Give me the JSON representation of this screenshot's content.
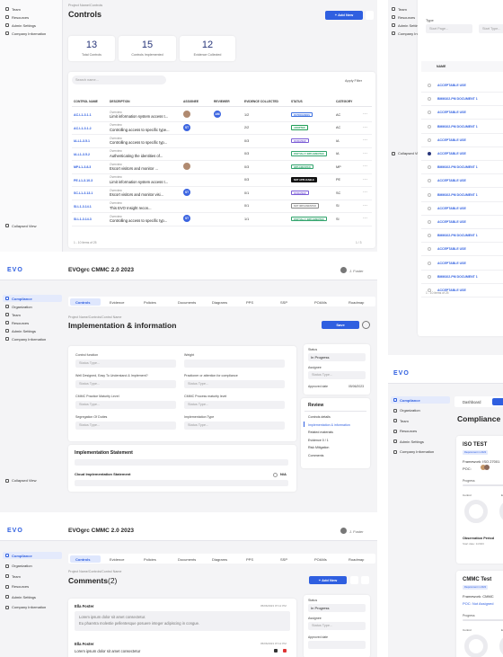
{
  "controls_page": {
    "sidebar": [
      "Team",
      "Resources",
      "Admin Settings",
      "Company Information"
    ],
    "collapsed": "Collapsed View",
    "breadcrumb": "Project Name/Controls",
    "title": "Controls",
    "add_button": "+ Add New",
    "stats": [
      {
        "value": "13",
        "label": "Total Controls"
      },
      {
        "value": "15",
        "label": "Controls Implemented"
      },
      {
        "value": "12",
        "label": "Evidence Collected"
      }
    ],
    "search": "Search name...",
    "filter": "Apply Filter",
    "headers": [
      "CONTROL NAME",
      "DESCRIPTION",
      "ASSIGNEE",
      "REVIEWER",
      "EVIDENCE COLLECTED",
      "STATUS",
      "CATEGORY"
    ],
    "rows": [
      {
        "name": "AC.L1-3.1.1",
        "overview": "Overview",
        "description": "Limit information system access t...",
        "assignee_photo": true,
        "assignee": null,
        "reviewer": "AM",
        "evidence": "1/2",
        "status": "IN PROGRESS",
        "status_color": "#3b6fe0",
        "category": "AC"
      },
      {
        "name": "AC.L1-3.1.2",
        "overview": "Overview",
        "description": "Controlling access to specific type...",
        "assignee_photo": false,
        "assignee": "ST",
        "reviewer": null,
        "evidence": "2/2",
        "status": "ADOPTED",
        "status_color": "#1f9d55",
        "category": "AC"
      },
      {
        "name": "IA.L1-3.5.1",
        "overview": "Overview",
        "description": "Controlling access to specific typ...",
        "assignee_photo": false,
        "assignee": null,
        "reviewer": null,
        "evidence": "0/3",
        "status": "IN REVIEW",
        "status_color": "#7b5cd6",
        "category": "IA"
      },
      {
        "name": "IA.L1-3.5.2",
        "overview": "Overview",
        "description": "Authenticating the identities of...",
        "assignee_photo": false,
        "assignee": null,
        "reviewer": null,
        "evidence": "0/3",
        "status": "PARTIALLY IMPLEMENTED",
        "status_color": "#2fa36b",
        "category": "IA"
      },
      {
        "name": "MP.L1-3.8.3",
        "overview": "Overview",
        "description": "Escort visitors and monitor ...",
        "assignee_photo": true,
        "assignee": null,
        "reviewer": null,
        "evidence": "0/3",
        "status": "IMPLEMENTED",
        "status_color": "#2fa36b",
        "category": "MP"
      },
      {
        "name": "PE.L1-3.10.3",
        "overview": "Overview",
        "description": "Limit information system access t...",
        "assignee_photo": false,
        "assignee": null,
        "reviewer": null,
        "evidence": "0/3",
        "status": "NOT APPLICABLE",
        "status_color": "#111111",
        "category": "PE"
      },
      {
        "name": "SC.L1-3.13.1",
        "overview": "Overview",
        "description": "Escort visitors and monitor visi...",
        "assignee_photo": false,
        "assignee": "ST",
        "reviewer": null,
        "evidence": "0/1",
        "status": "IN REVIEW",
        "status_color": "#7b5cd6",
        "category": "SC"
      },
      {
        "name": "SI.L1-3.14.1",
        "overview": "Overview",
        "description": "This EVO Insight recon...",
        "assignee_photo": false,
        "assignee": null,
        "reviewer": null,
        "evidence": "0/1",
        "status": "NOT IMPLEMENTED",
        "status_color": "#888888",
        "category": "SI"
      },
      {
        "name": "SI.L1-3.14.3",
        "overview": "Overview",
        "description": "Controlling access to specific typ...",
        "assignee_photo": false,
        "assignee": "ST",
        "reviewer": null,
        "evidence": "1/1",
        "status": "PARTIALLY IMPLEMENTED",
        "status_color": "#2fa36b",
        "category": "SI"
      }
    ],
    "footer_left": "1 - 10 items of 25",
    "footer_right": "1 / 3"
  },
  "documents_page": {
    "sidebar": [
      "Team",
      "Resources",
      "Admin Settings",
      "Company Information"
    ],
    "collapsed": "Collapsed View",
    "type_label": "Type",
    "filters": [
      "Start Page...",
      "Start Type..."
    ],
    "header": "NAME",
    "rows": [
      "ACCEPTABLE USE",
      "BMM102-PM DOCUMENT 1",
      "ACCEPTABLE USE",
      "BMM102-PM DOCUMENT 1",
      "ACCEPTABLE USE",
      "ACCEPTABLE USE",
      "BMM102-PM DOCUMENT 1",
      "ACCEPTABLE USE",
      "BMM102-PM DOCUMENT 1",
      "ACCEPTABLE USE",
      "ACCEPTABLE USE",
      "BMM102-PM DOCUMENT 1",
      "ACCEPTABLE USE",
      "ACCEPTABLE USE",
      "BMM102-PM DOCUMENT 1",
      "ACCEPTABLE USE"
    ],
    "footer": "1 - 10 items of 25"
  },
  "implementation_page": {
    "logo": "EVO",
    "project": "EVOgrc CMMC 2.0 2023",
    "user": "J. Foster",
    "sidebar": [
      "Compliance",
      "Organization",
      "Team",
      "Resources",
      "Admin Settings",
      "Company Information"
    ],
    "collapsed": "Collapsed View",
    "tabs": [
      "Controls",
      "Evidence",
      "Policies",
      "Documents",
      "Diagrams",
      "PPS",
      "SSP",
      "POAMs",
      "Roadmap"
    ],
    "breadcrumb": "Project Name/Controls/Control Name",
    "title": "Implementation & information",
    "save": "Save",
    "fields": [
      {
        "label": "Control function",
        "placeholder": "Status Type..."
      },
      {
        "label": "Weight",
        "placeholder": ""
      },
      {
        "label": "Well Designed, Easy To Understand & Implement?",
        "placeholder": "Status Type..."
      },
      {
        "label": "Practioner or attention for compliance",
        "placeholder": "Status Type..."
      },
      {
        "label": "CMMC Practice Maturity Level",
        "placeholder": "Status Type..."
      },
      {
        "label": "CMMC Process maturity level",
        "placeholder": "Status Type..."
      },
      {
        "label": "Segregation Of Duties",
        "placeholder": "Status Type..."
      },
      {
        "label": "Implementation Type",
        "placeholder": "Status Type..."
      }
    ],
    "status_label": "Status",
    "status_value": "In Progress",
    "assignee_label": "Assignee",
    "assignee_value": "Status Type...",
    "approved_label": "Approved date",
    "approved_value": "05/06/2023",
    "review_title": "Review",
    "review_items": [
      "Controls details",
      "Implementation & information",
      "Related materials",
      "Evidence 0 / 1",
      "Risk Mitigation",
      "Comments"
    ],
    "statement_title": "Implementation Statement",
    "cloud_title": "Cloud Implementation Statement",
    "cloud_value": "N/A"
  },
  "compliance_page": {
    "logo": "EVO",
    "sidebar": [
      "Compliance",
      "Organization",
      "Team",
      "Resources",
      "Admin Settings",
      "Company Information"
    ],
    "tab": "Dashboard",
    "title": "Compliance",
    "cards": [
      {
        "name": "ISO TEST",
        "badge": "Requirement in 2023",
        "framework": "Framework: ISO 27001",
        "poc": "POC:",
        "progress": "Progress",
        "control": "Control",
        "evidence": "Evid",
        "observation": "Observation Period",
        "observation_sub": "Start date: 1/2023"
      },
      {
        "name": "CMMC Test",
        "badge": "Requirement in 2023",
        "framework": "Framework: CMMC",
        "poc": "POC: Not Assigned",
        "progress": "Progress",
        "control": "Control",
        "evidence": "Evid"
      }
    ]
  },
  "comments_page": {
    "logo": "EVO",
    "project": "EVOgrc CMMC 2.0 2023",
    "user": "J. Foster",
    "sidebar": [
      "Compliance",
      "Organization",
      "Team",
      "Resources",
      "Admin Settings",
      "Company Information"
    ],
    "tabs": [
      "Controls",
      "Evidence",
      "Policies",
      "Documents",
      "Diagrams",
      "PPS",
      "SSP",
      "POAMs",
      "Roadmap"
    ],
    "breadcrumb": "Project Name/Controls/Control Name",
    "title": "Comments",
    "count": "(2)",
    "add_button": "+ Add New",
    "status_label": "Status",
    "status_value": "In Progress",
    "assignee_label": "Assignee",
    "assignee_value": "Status Type...",
    "approved_label": "Approved date",
    "comments": [
      {
        "author": "Ella Foster",
        "date": "05/06/2023 07:12 PM",
        "lines": [
          "Lorem ipsum dolor sit amet consectetur.",
          "Eu pharetra molestie pellentesque posuere integer adipiscing in congue."
        ]
      },
      {
        "author": "Ella Foster",
        "date": "05/06/2023 07:12 PM",
        "lines": [
          "Lorem ipsum dolor sit amet consectetur"
        ]
      }
    ]
  }
}
